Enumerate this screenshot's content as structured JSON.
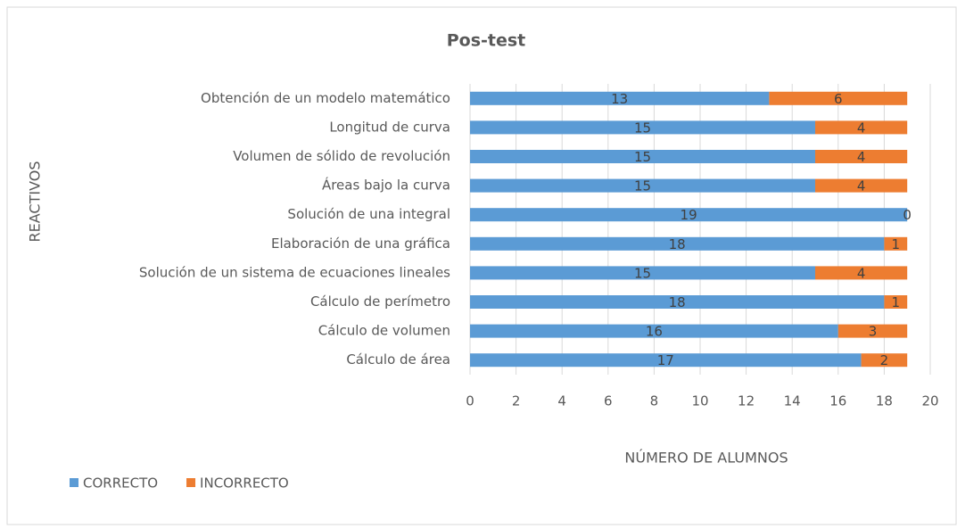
{
  "chart_data": {
    "type": "stacked-bar-horizontal",
    "title": "Pos-test",
    "x_label": "NÚMERO DE ALUMNOS",
    "y_label": "REACTIVOS",
    "categories": [
      "Obtención de un modelo matemático",
      "Longitud de curva",
      "Volumen de sólido de revolución",
      "Áreas bajo la curva",
      "Solución de una integral",
      "Elaboración de una gráfica",
      "Solución de un sistema de ecuaciones lineales",
      "Cálculo de perímetro",
      "Cálculo de volumen",
      "Cálculo de área"
    ],
    "series": [
      {
        "name": "CORRECTO",
        "color": "#5b9bd5",
        "values": [
          13,
          15,
          15,
          15,
          19,
          18,
          15,
          18,
          16,
          17
        ]
      },
      {
        "name": "INCORRECTO",
        "color": "#ed7d31",
        "values": [
          6,
          4,
          4,
          4,
          0,
          1,
          4,
          1,
          3,
          2
        ]
      }
    ],
    "xlim": [
      0,
      20
    ],
    "xticks": [
      0,
      2,
      4,
      6,
      8,
      10,
      12,
      14,
      16,
      18,
      20
    ],
    "grid": true,
    "legend": "bottom-left"
  }
}
